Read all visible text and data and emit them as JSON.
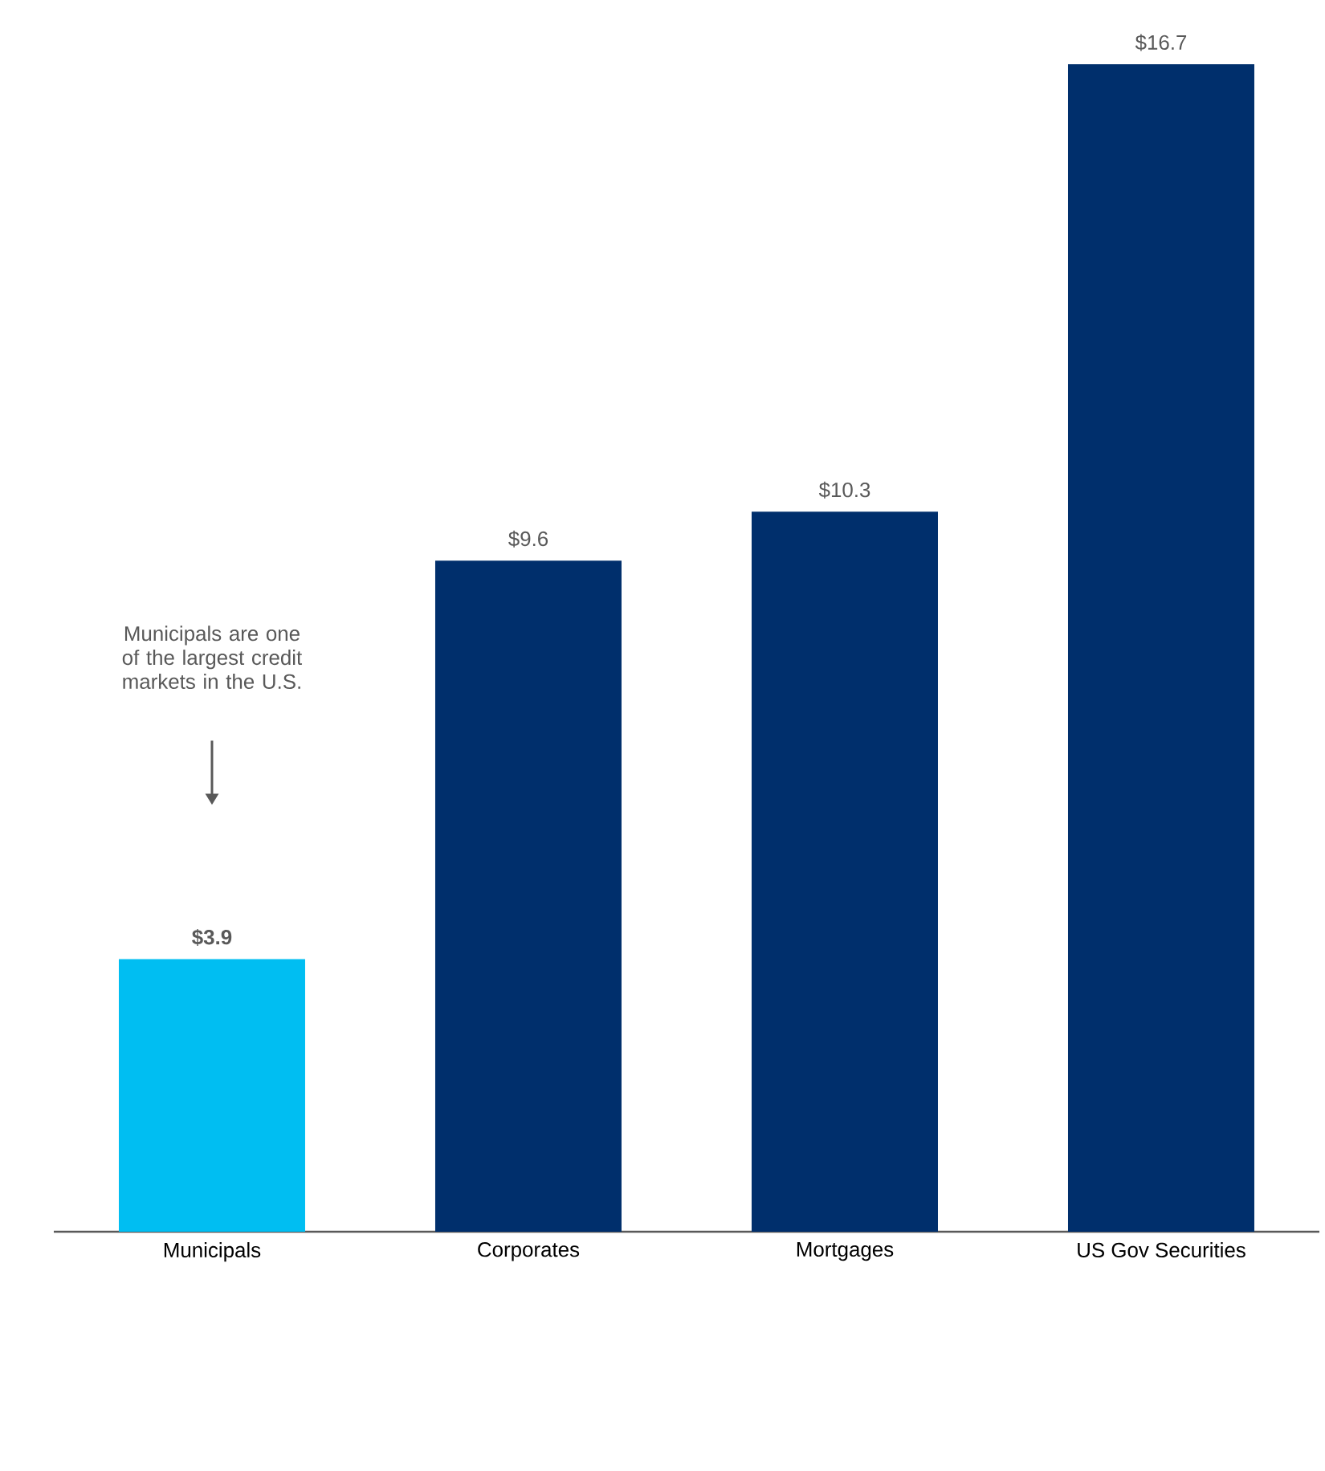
{
  "chart_data": {
    "type": "bar",
    "categories": [
      "Municipals",
      "Corporates",
      "Mortgages",
      "US Gov Securities"
    ],
    "values": [
      3.9,
      9.6,
      10.3,
      16.7
    ],
    "colors": [
      "#00bef2",
      "#002f6c",
      "#002f6c",
      "#002f6c"
    ],
    "value_labels": [
      "**$3.9**",
      "$9.6",
      "$10.3",
      "$16.7"
    ],
    "annotations": [
      "Municipals are one of the largest credit markets in the U.S."
    ]
  }
}
